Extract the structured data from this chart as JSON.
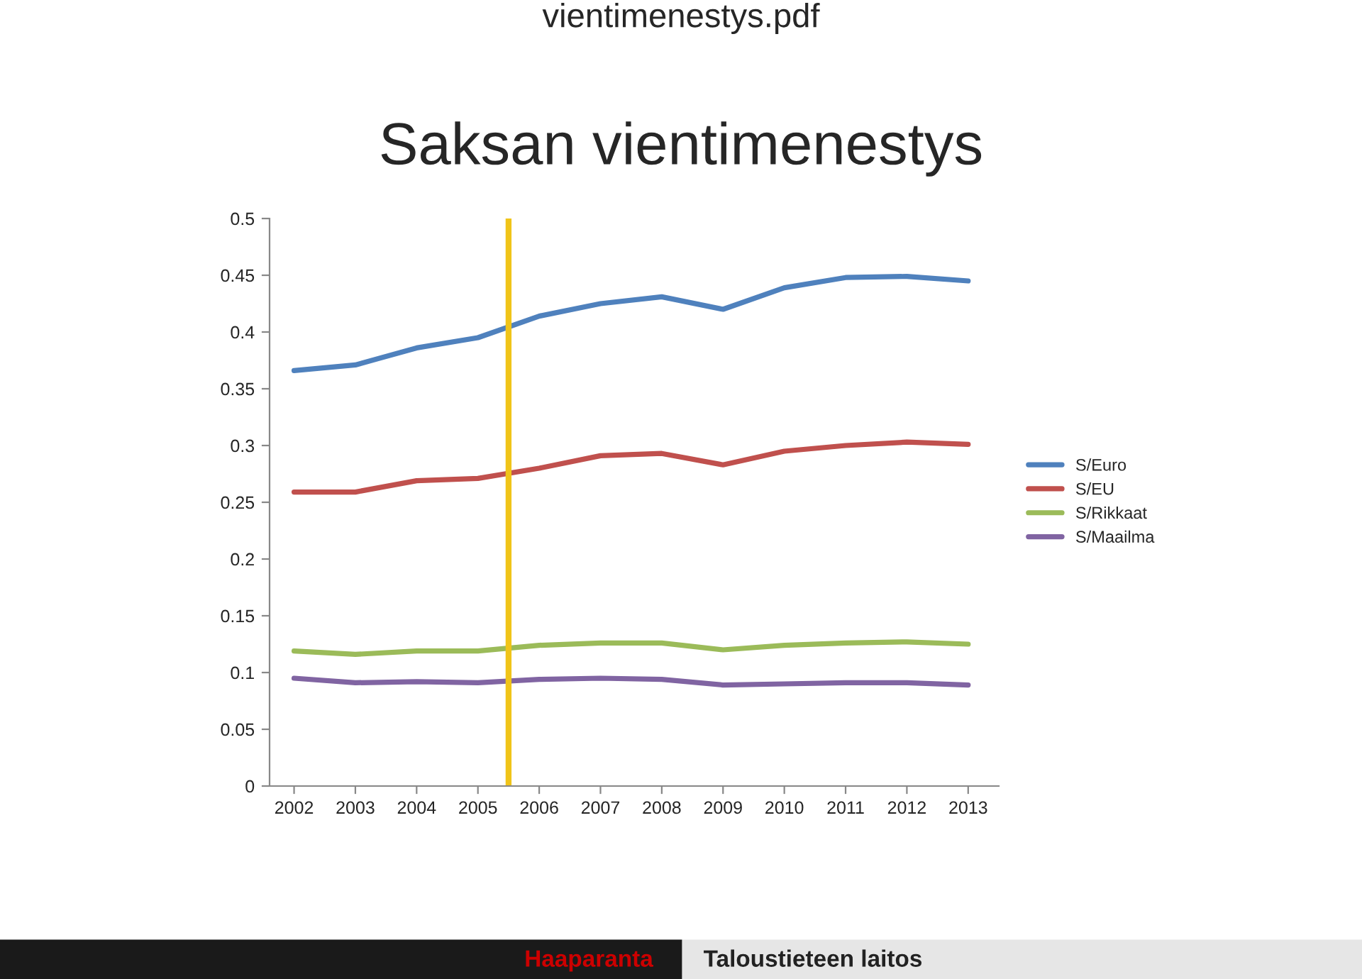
{
  "chart_data": {
    "type": "line",
    "title": "Saksan vientimenestys",
    "x": [
      2002,
      2003,
      2004,
      2005,
      2006,
      2007,
      2008,
      2009,
      2010,
      2011,
      2012,
      2013
    ],
    "series": [
      {
        "name": "S/Euro",
        "color": "#4f81bd",
        "values": [
          0.366,
          0.371,
          0.386,
          0.395,
          0.414,
          0.425,
          0.431,
          0.42,
          0.439,
          0.448,
          0.449,
          0.445
        ]
      },
      {
        "name": "S/EU",
        "color": "#c0504d",
        "values": [
          0.259,
          0.259,
          0.269,
          0.271,
          0.28,
          0.291,
          0.293,
          0.283,
          0.295,
          0.3,
          0.303,
          0.301
        ]
      },
      {
        "name": "S/Rikkaat",
        "color": "#9bbb59",
        "values": [
          0.119,
          0.116,
          0.119,
          0.119,
          0.124,
          0.126,
          0.126,
          0.12,
          0.124,
          0.126,
          0.127,
          0.125
        ]
      },
      {
        "name": "S/Maailma",
        "color": "#8064a2",
        "values": [
          0.095,
          0.091,
          0.092,
          0.091,
          0.094,
          0.095,
          0.094,
          0.089,
          0.09,
          0.091,
          0.091,
          0.089
        ]
      }
    ],
    "xlim": [
      2001.6,
      2013.5
    ],
    "xticks": [
      2002,
      2003,
      2004,
      2005,
      2006,
      2007,
      2008,
      2009,
      2010,
      2011,
      2012,
      2013
    ],
    "ylim": [
      0,
      0.5
    ],
    "yticks": [
      0,
      0.05,
      0.1,
      0.15,
      0.2,
      0.25,
      0.3,
      0.35,
      0.4,
      0.45,
      0.5
    ],
    "ref_lines": [
      {
        "axis": "x",
        "value": 2005.5,
        "color": "#f0c419"
      }
    ],
    "annotations": [
      "vientimenestys.pdf",
      "Haaparanta",
      "Taloustieteen laitos"
    ],
    "grid": false,
    "legend": "right",
    "marker": "none",
    "line_style": "solid"
  }
}
